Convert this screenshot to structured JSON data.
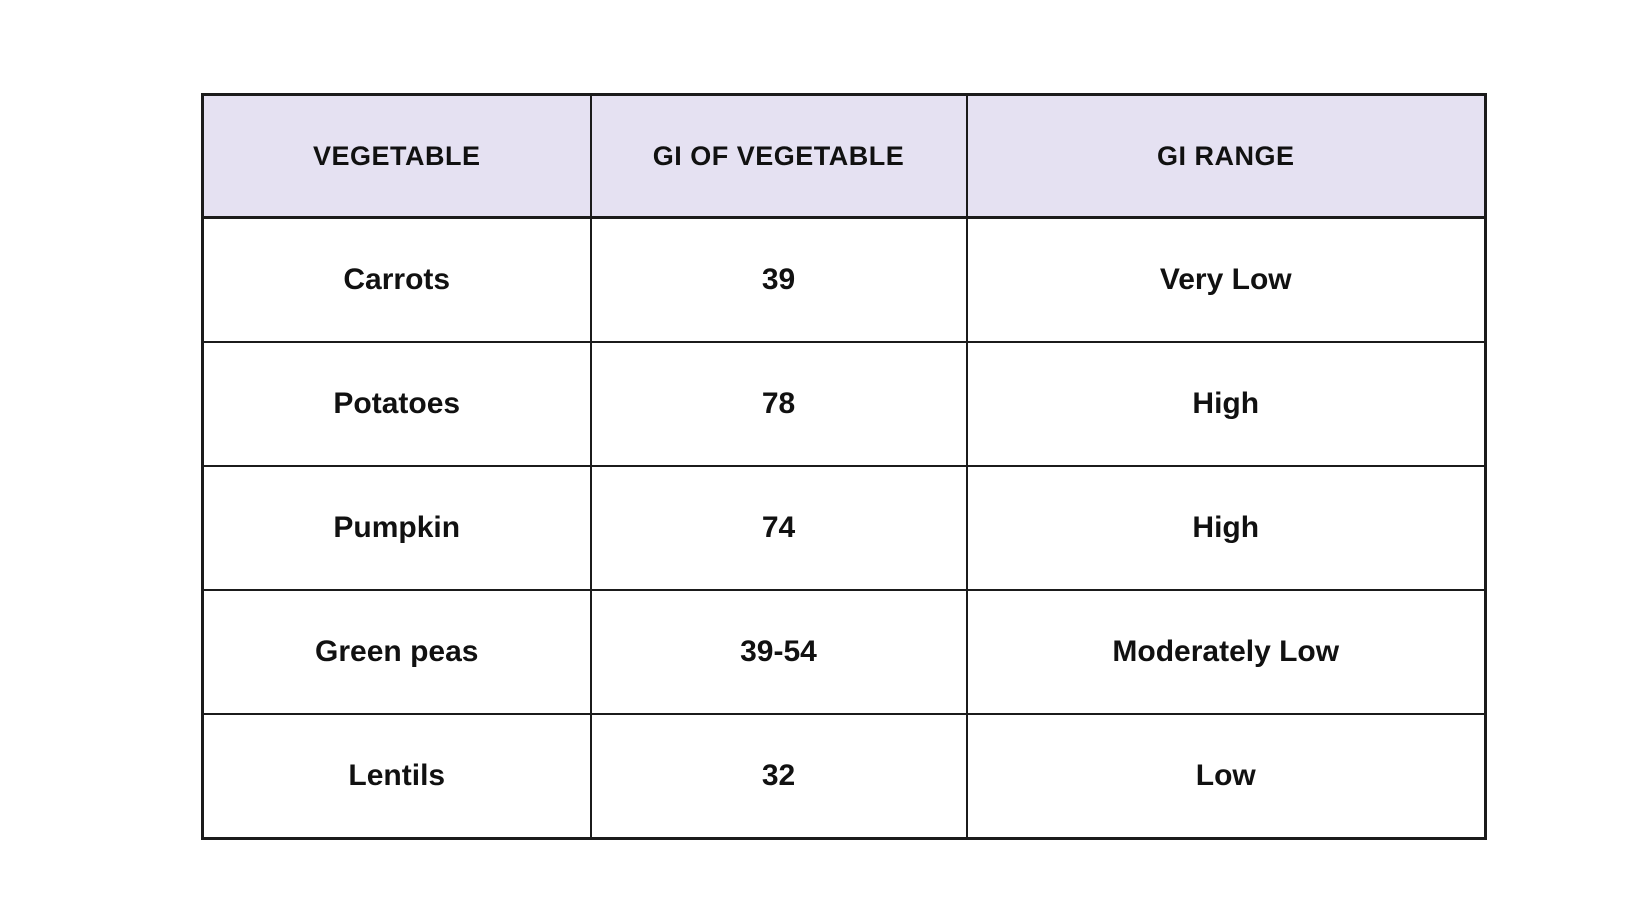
{
  "chart_data": {
    "type": "table",
    "columns": [
      "VEGETABLE",
      "GI OF VEGETABLE",
      "GI RANGE"
    ],
    "rows": [
      [
        "Carrots",
        "39",
        "Very Low"
      ],
      [
        "Potatoes",
        "78",
        "High"
      ],
      [
        "Pumpkin",
        "74",
        "High"
      ],
      [
        "Green peas",
        "39-54",
        "Moderately Low"
      ],
      [
        "Lentils",
        "32",
        "Low"
      ]
    ],
    "title": "",
    "layout": {
      "header_background": "#e5e1f2",
      "border_color": "#1b1b1b",
      "text_color": "#111111",
      "row_background": "#ffffff",
      "grid": "on"
    }
  }
}
